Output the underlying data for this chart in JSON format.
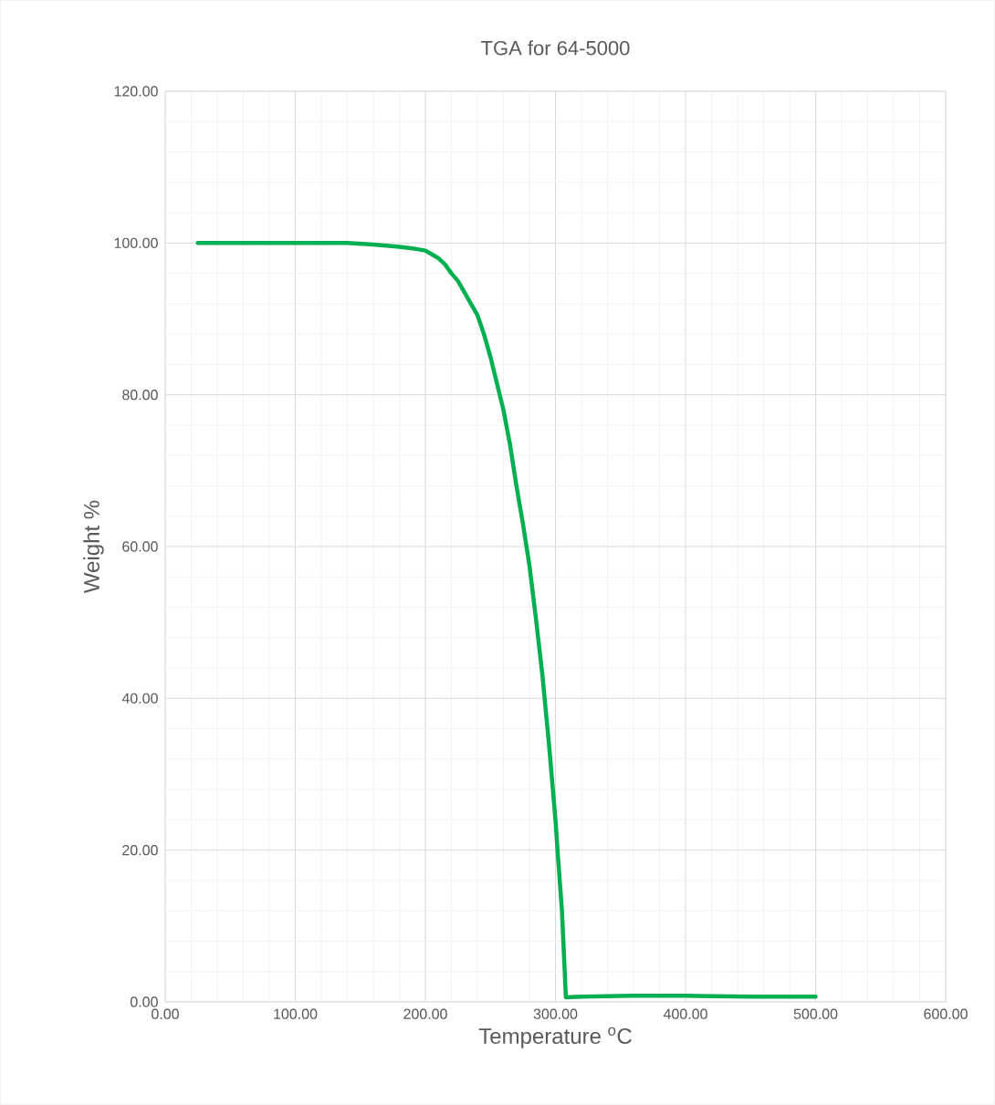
{
  "chart_data": {
    "type": "line",
    "title": "TGA for 64-5000",
    "xlabel": "Temperature $^{o}$C",
    "ylabel": "Weight %",
    "x": [
      25,
      60,
      100,
      140,
      160,
      180,
      190,
      200,
      205,
      210,
      215,
      220,
      225,
      230,
      235,
      240,
      245,
      250,
      255,
      260,
      265,
      270,
      275,
      280,
      285,
      290,
      295,
      300,
      302,
      305,
      308,
      320,
      360,
      400,
      450,
      500
    ],
    "series": [
      {
        "color": "#00b050",
        "values": [
          100,
          100,
          100,
          100,
          99.8,
          99.5,
          99.3,
          99,
          98.5,
          98,
          97.2,
          96,
          95,
          93.5,
          92,
          90.5,
          88,
          85,
          81.5,
          78,
          73.5,
          68,
          63,
          57.5,
          50.5,
          43,
          34,
          24,
          19,
          12,
          0.6,
          0.7,
          0.8,
          0.8,
          0.7,
          0.7
        ]
      }
    ],
    "xlim": [
      0,
      600
    ],
    "ylim": [
      0,
      120
    ],
    "xticks": [
      {
        "value": 0,
        "label": "0.00"
      },
      {
        "value": 100,
        "label": "100.00"
      },
      {
        "value": 200,
        "label": "200.00"
      },
      {
        "value": 300,
        "label": "300.00"
      },
      {
        "value": 400,
        "label": "400.00"
      },
      {
        "value": 500,
        "label": "500.00"
      },
      {
        "value": 600,
        "label": "600.00"
      }
    ],
    "yticks": [
      {
        "value": 0,
        "label": "0.00"
      },
      {
        "value": 20,
        "label": "20.00"
      },
      {
        "value": 40,
        "label": "40.00"
      },
      {
        "value": 60,
        "label": "60.00"
      },
      {
        "value": 80,
        "label": "80.00"
      },
      {
        "value": 100,
        "label": "100.00"
      },
      {
        "value": 120,
        "label": "120.00"
      }
    ],
    "grid": true,
    "marker": "none",
    "line_style": "solid"
  }
}
